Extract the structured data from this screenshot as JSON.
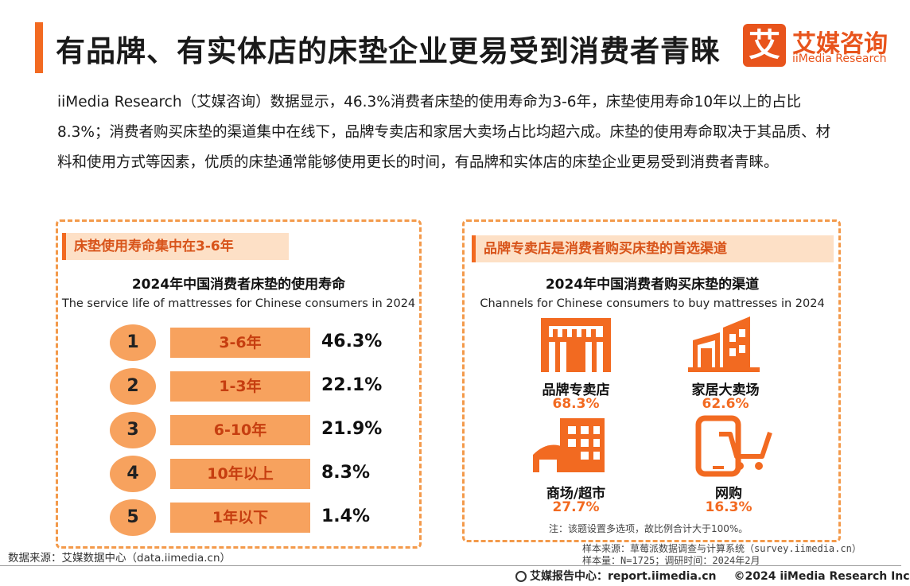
{
  "header": {
    "title": "有品牌、有实体店的床垫企业更易受到消费者青睐",
    "logo_mark": "艾",
    "logo_cn": "艾媒咨询",
    "logo_en": "iiMedia Research"
  },
  "intro": "iiMedia Research（艾媒咨询）数据显示，46.3%消费者床垫的使用寿命为3-6年，床垫使用寿命10年以上的占比8.3%；消费者购买床垫的渠道集中在线下，品牌专卖店和家居大卖场占比均超六成。床垫的使用寿命取决于其品质、材料和使用方式等因素，优质的床垫通常能够使用更长的时间，有品牌和实体店的床垫企业更易受到消费者青睐。",
  "left_panel": {
    "tag": "床垫使用寿命集中在3-6年"
  },
  "right_panel": {
    "tag": "品牌专卖店是消费者购买床垫的首选渠道",
    "note": "注：该题设置多选项，故比例合计大于100%。"
  },
  "chart_data": [
    {
      "type": "table",
      "title": "2024年中国消费者床垫的使用寿命",
      "subtitle": "The service life of mattresses for Chinese consumers in 2024",
      "ranks": [
        "1",
        "2",
        "3",
        "4",
        "5"
      ],
      "categories": [
        "3-6年",
        "1-3年",
        "6-10年",
        "10年以上",
        "1年以下"
      ],
      "values": [
        46.3,
        22.1,
        21.9,
        8.3,
        1.4
      ],
      "value_labels": [
        "46.3%",
        "22.1%",
        "21.9%",
        "8.3%",
        "1.4%"
      ],
      "unit": "%"
    },
    {
      "type": "table",
      "title": "2024年中国消费者购买床垫的渠道",
      "subtitle": "Channels for Chinese consumers to buy mattresses in 2024",
      "categories": [
        "品牌专卖店",
        "家居大卖场",
        "商场/超市",
        "网购"
      ],
      "values": [
        68.3,
        62.6,
        27.7,
        16.3
      ],
      "value_labels": [
        "68.3%",
        "62.6%",
        "27.7%",
        "16.3%"
      ],
      "icons": [
        "storefront-icon",
        "building-complex-icon",
        "mall-building-icon",
        "mobile-cart-icon"
      ],
      "unit": "%",
      "accent": "#f26a21"
    }
  ],
  "footer": {
    "source": "数据来源：艾媒数据中心（data.iimedia.cn）",
    "sample_source": "样本来源：草莓派数据调查与计算系统（survey.iimedia.cn）",
    "sample_size": "样本量：N=1725；调研时间：2024年2月",
    "report_center": "艾媒报告中心：report.iimedia.cn",
    "copyright": "©2024  iiMedia Research  Inc"
  }
}
